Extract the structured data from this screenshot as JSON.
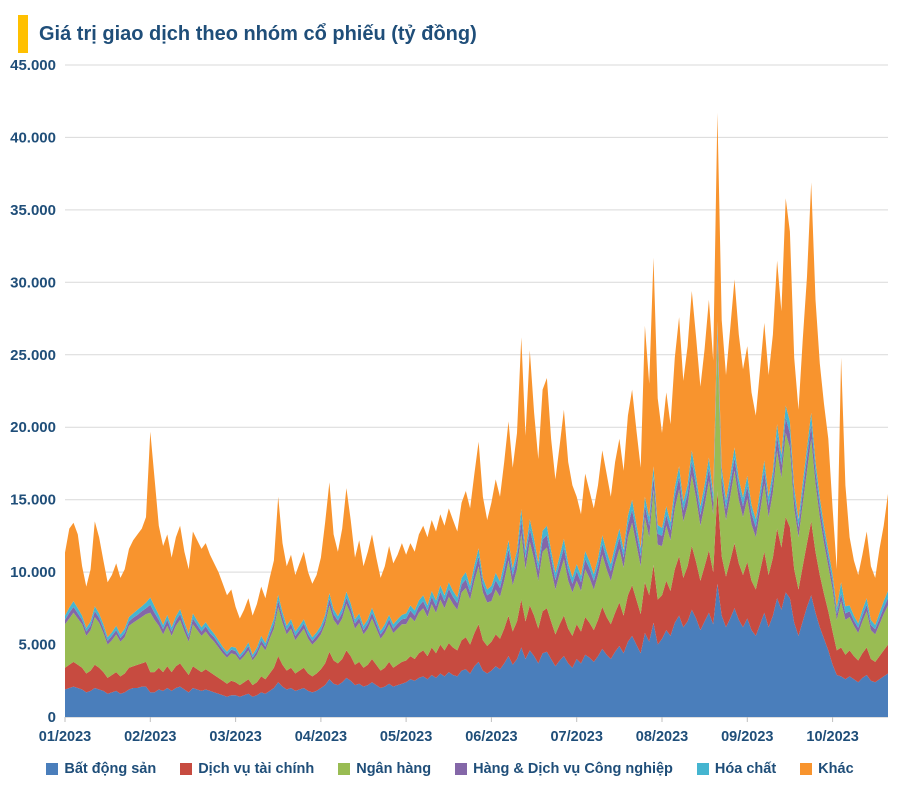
{
  "title": {
    "text": "Giá trị giao dịch theo nhóm cổ phiếu (tỷ đồng)",
    "accent_color": "#FFC000",
    "text_color": "#1F4E79"
  },
  "theme": {
    "navy": "#1F4E79",
    "grid_color": "#D9D9D9",
    "axis_color": "#BFBFBF",
    "background": "#FFFFFF"
  },
  "chart_data": {
    "type": "area",
    "stacked": true,
    "grid": true,
    "legend_position": "bottom",
    "ylim": [
      0,
      45000
    ],
    "y_tick_step": 5000,
    "y_tick_labels": [
      "0",
      "5.000",
      "10.000",
      "15.000",
      "20.000",
      "25.000",
      "30.000",
      "35.000",
      "40.000",
      "45.000"
    ],
    "x_labels": [
      "01/2023",
      "02/2023",
      "03/2023",
      "04/2023",
      "05/2023",
      "06/2023",
      "07/2023",
      "08/2023",
      "09/2023",
      "10/2023"
    ],
    "x_label_indices": [
      0,
      20,
      40,
      60,
      80,
      100,
      120,
      140,
      160,
      180
    ],
    "series": [
      {
        "name": "Bất động sản",
        "color": "#4A7EBB",
        "values": [
          1900,
          2000,
          2100,
          2000,
          1900,
          1700,
          1800,
          2000,
          1900,
          1800,
          1600,
          1700,
          1800,
          1600,
          1700,
          1900,
          2000,
          2000,
          2100,
          2100,
          1700,
          1700,
          1900,
          1800,
          2000,
          1800,
          2000,
          2100,
          1900,
          1700,
          2000,
          1900,
          1800,
          1900,
          1800,
          1700,
          1600,
          1500,
          1400,
          1500,
          1500,
          1400,
          1500,
          1600,
          1400,
          1500,
          1700,
          1600,
          1800,
          2000,
          2400,
          2100,
          1900,
          2000,
          1800,
          1900,
          2000,
          1800,
          1700,
          1800,
          2000,
          2200,
          2600,
          2300,
          2200,
          2400,
          2700,
          2500,
          2200,
          2300,
          2100,
          2200,
          2400,
          2200,
          2000,
          2100,
          2300,
          2100,
          2200,
          2300,
          2400,
          2600,
          2500,
          2700,
          2800,
          2600,
          2900,
          2700,
          3000,
          2800,
          3100,
          2900,
          2800,
          3200,
          3300,
          3000,
          3500,
          3800,
          3200,
          3000,
          3200,
          3500,
          3300,
          3700,
          4200,
          3600,
          4000,
          4800,
          4000,
          4600,
          4200,
          3700,
          4400,
          4500,
          4000,
          3500,
          3900,
          4200,
          3700,
          3400,
          4000,
          3700,
          4300,
          4100,
          3800,
          4200,
          4700,
          4300,
          4000,
          4500,
          4900,
          4400,
          5200,
          5600,
          5000,
          4400,
          5800,
          5200,
          6500,
          5000,
          5400,
          6000,
          5600,
          6500,
          7000,
          6200,
          6600,
          7400,
          6800,
          6000,
          6600,
          7200,
          6400,
          9200,
          7000,
          6200,
          6800,
          7500,
          6700,
          6200,
          6800,
          6000,
          5600,
          6400,
          7200,
          6200,
          7000,
          8200,
          7400,
          8600,
          8200,
          6500,
          5600,
          6600,
          7600,
          8400,
          7200,
          6200,
          5400,
          4600,
          3600,
          2900,
          2800,
          2600,
          2800,
          2600,
          2400,
          2700,
          2900,
          2500,
          2400,
          2600,
          2800,
          3000
        ]
      },
      {
        "name": "Dịch vụ tài chính",
        "color": "#C74B40",
        "values": [
          1500,
          1600,
          1700,
          1600,
          1500,
          1300,
          1400,
          1600,
          1500,
          1300,
          1100,
          1200,
          1300,
          1200,
          1300,
          1500,
          1500,
          1600,
          1600,
          1700,
          1400,
          1400,
          1500,
          1300,
          1500,
          1300,
          1500,
          1600,
          1400,
          1200,
          1500,
          1400,
          1300,
          1400,
          1300,
          1200,
          1100,
          1000,
          900,
          1000,
          900,
          800,
          900,
          1000,
          800,
          900,
          1100,
          1000,
          1200,
          1400,
          1800,
          1500,
          1300,
          1400,
          1200,
          1300,
          1400,
          1200,
          1100,
          1200,
          1300,
          1500,
          1900,
          1600,
          1500,
          1600,
          1900,
          1700,
          1400,
          1500,
          1300,
          1400,
          1600,
          1400,
          1200,
          1300,
          1500,
          1300,
          1400,
          1500,
          1500,
          1600,
          1500,
          1700,
          1800,
          1600,
          1900,
          1700,
          2000,
          1800,
          2000,
          1900,
          1800,
          2100,
          2200,
          2000,
          2300,
          2600,
          2100,
          1900,
          2000,
          2200,
          2100,
          2400,
          2800,
          2300,
          2600,
          3300,
          2600,
          3100,
          2800,
          2400,
          2900,
          3000,
          2600,
          2200,
          2500,
          2800,
          2400,
          2200,
          2400,
          2200,
          2600,
          2400,
          2200,
          2500,
          2900,
          2600,
          2400,
          2700,
          3000,
          2600,
          3200,
          3500,
          3100,
          2700,
          3500,
          3200,
          4000,
          3100,
          3000,
          3400,
          3100,
          3700,
          4100,
          3400,
          3800,
          4400,
          3900,
          3400,
          3800,
          4300,
          3600,
          6400,
          4100,
          3500,
          4000,
          4500,
          3900,
          3600,
          3900,
          3400,
          3200,
          3700,
          4200,
          3600,
          4000,
          4800,
          4300,
          5200,
          4900,
          3700,
          3200,
          3800,
          4400,
          5100,
          4200,
          3600,
          3100,
          2700,
          2300,
          1700,
          2000,
          1700,
          1800,
          1600,
          1500,
          1700,
          1900,
          1500,
          1400,
          1600,
          1800,
          2000
        ]
      },
      {
        "name": "Ngân hàng",
        "color": "#99BC53",
        "values": [
          3000,
          3200,
          3400,
          3200,
          3000,
          2600,
          2800,
          3300,
          3100,
          2700,
          2300,
          2400,
          2600,
          2400,
          2500,
          2900,
          3000,
          3100,
          3200,
          3300,
          4100,
          3600,
          2900,
          2600,
          2800,
          2500,
          2800,
          3000,
          2600,
          2300,
          2900,
          2700,
          2500,
          2600,
          2400,
          2300,
          2100,
          1900,
          1800,
          1900,
          1900,
          1700,
          1800,
          2000,
          1700,
          1900,
          2200,
          2000,
          2400,
          2700,
          3400,
          2900,
          2500,
          2700,
          2300,
          2500,
          2700,
          2400,
          2200,
          2300,
          2400,
          2700,
          3200,
          2800,
          2600,
          2800,
          3200,
          2900,
          2500,
          2700,
          2300,
          2500,
          2800,
          2500,
          2200,
          2400,
          2600,
          2400,
          2500,
          2600,
          2500,
          2700,
          2600,
          2800,
          2900,
          2700,
          3000,
          2800,
          3100,
          2900,
          3200,
          3000,
          2800,
          3300,
          3400,
          3100,
          3600,
          4000,
          3300,
          3000,
          2800,
          3100,
          2900,
          3300,
          3800,
          3200,
          3600,
          4600,
          3600,
          4400,
          3900,
          3300,
          4100,
          4200,
          3600,
          3100,
          3500,
          3900,
          3300,
          3000,
          3000,
          2800,
          3300,
          3100,
          2800,
          3100,
          3600,
          3300,
          3000,
          3400,
          3700,
          3300,
          4000,
          4300,
          3800,
          3300,
          4500,
          4000,
          5200,
          3800,
          3400,
          3800,
          3500,
          4200,
          4600,
          3900,
          4200,
          4900,
          4400,
          3800,
          4200,
          4800,
          4000,
          10400,
          4600,
          3900,
          4400,
          5000,
          4400,
          4000,
          4400,
          3900,
          3600,
          4100,
          4700,
          4000,
          4500,
          5400,
          4800,
          5800,
          5500,
          4200,
          3600,
          4300,
          5000,
          5700,
          4700,
          4000,
          3500,
          3100,
          2900,
          2100,
          3200,
          2400,
          2300,
          2100,
          1900,
          2200,
          2500,
          2000,
          1900,
          2200,
          2500,
          2700
        ]
      },
      {
        "name": "Hàng & Dịch vụ Công nghiệp",
        "color": "#8467A8",
        "values": [
          300,
          400,
          400,
          350,
          300,
          300,
          300,
          400,
          350,
          300,
          250,
          300,
          300,
          250,
          300,
          300,
          350,
          350,
          400,
          400,
          550,
          500,
          400,
          350,
          400,
          300,
          350,
          400,
          350,
          300,
          400,
          350,
          300,
          350,
          300,
          300,
          250,
          250,
          200,
          250,
          250,
          200,
          250,
          300,
          200,
          250,
          300,
          250,
          300,
          350,
          450,
          400,
          300,
          350,
          300,
          300,
          350,
          300,
          250,
          300,
          300,
          350,
          450,
          400,
          350,
          400,
          450,
          400,
          350,
          350,
          300,
          350,
          400,
          350,
          300,
          300,
          350,
          300,
          350,
          350,
          400,
          450,
          400,
          450,
          500,
          450,
          500,
          450,
          550,
          500,
          550,
          500,
          450,
          550,
          600,
          500,
          600,
          700,
          550,
          500,
          600,
          650,
          600,
          700,
          800,
          650,
          750,
          950,
          750,
          900,
          800,
          700,
          850,
          850,
          750,
          650,
          700,
          800,
          700,
          600,
          650,
          600,
          700,
          650,
          600,
          650,
          750,
          700,
          650,
          700,
          800,
          700,
          850,
          900,
          800,
          700,
          800,
          800,
          900,
          750,
          700,
          750,
          700,
          800,
          900,
          750,
          800,
          950,
          850,
          750,
          800,
          900,
          800,
          600,
          850,
          750,
          800,
          900,
          800,
          750,
          850,
          750,
          700,
          800,
          900,
          800,
          850,
          1000,
          900,
          1050,
          1000,
          800,
          700,
          800,
          900,
          1000,
          850,
          750,
          650,
          600,
          550,
          400,
          500,
          450,
          400,
          350,
          350,
          400,
          450,
          350,
          350,
          400,
          450,
          500
        ]
      },
      {
        "name": "Hóa chất",
        "color": "#45B5D0",
        "values": [
          300,
          350,
          400,
          350,
          300,
          250,
          300,
          350,
          300,
          300,
          250,
          250,
          300,
          250,
          300,
          300,
          300,
          350,
          350,
          400,
          500,
          450,
          350,
          300,
          350,
          300,
          300,
          350,
          300,
          250,
          350,
          300,
          300,
          300,
          300,
          250,
          250,
          200,
          200,
          200,
          250,
          200,
          200,
          250,
          200,
          250,
          300,
          250,
          300,
          350,
          400,
          350,
          300,
          300,
          300,
          300,
          300,
          300,
          250,
          250,
          300,
          300,
          400,
          350,
          300,
          350,
          400,
          350,
          300,
          300,
          300,
          300,
          350,
          300,
          250,
          300,
          300,
          300,
          300,
          300,
          350,
          350,
          350,
          400,
          400,
          350,
          400,
          400,
          450,
          400,
          450,
          400,
          400,
          450,
          500,
          450,
          500,
          550,
          450,
          400,
          450,
          500,
          450,
          550,
          600,
          500,
          550,
          700,
          550,
          650,
          600,
          500,
          600,
          650,
          550,
          500,
          550,
          600,
          500,
          450,
          500,
          450,
          550,
          500,
          450,
          500,
          600,
          550,
          500,
          550,
          600,
          550,
          650,
          700,
          600,
          550,
          600,
          600,
          700,
          600,
          550,
          600,
          550,
          650,
          700,
          600,
          650,
          750,
          700,
          600,
          650,
          700,
          600,
          700,
          700,
          600,
          650,
          700,
          650,
          600,
          700,
          600,
          550,
          650,
          700,
          600,
          650,
          800,
          700,
          850,
          800,
          650,
          550,
          650,
          700,
          800,
          700,
          600,
          550,
          500,
          500,
          400,
          800,
          500,
          400,
          350,
          300,
          400,
          450,
          350,
          300,
          400,
          450,
          500
        ]
      },
      {
        "name": "Khác",
        "color": "#F8942E",
        "values": [
          4350,
          5450,
          5400,
          5100,
          3400,
          2850,
          3600,
          5850,
          5250,
          4400,
          3800,
          3950,
          4300,
          3900,
          4100,
          4700,
          5050,
          5200,
          5350,
          5900,
          11450,
          8850,
          6150,
          5450,
          5550,
          4800,
          5450,
          5750,
          4850,
          4450,
          5650,
          5550,
          5400,
          5450,
          5100,
          4850,
          4700,
          4350,
          3900,
          3950,
          2800,
          2500,
          2750,
          3050,
          2700,
          3000,
          3400,
          3100,
          3600,
          4000,
          6750,
          4750,
          4100,
          4450,
          3900,
          4300,
          4650,
          4000,
          3700,
          3950,
          4700,
          6350,
          7650,
          5150,
          4450,
          5450,
          7150,
          5750,
          4250,
          5050,
          4100,
          4650,
          5050,
          4250,
          3650,
          4000,
          4750,
          4200,
          4450,
          4950,
          4050,
          4300,
          4050,
          4550,
          4800,
          4700,
          4900,
          4750,
          4900,
          4800,
          5100,
          4900,
          4550,
          5200,
          5600,
          5350,
          6300,
          7350,
          5600,
          4800,
          5750,
          6450,
          5850,
          6950,
          8200,
          6950,
          8100,
          11850,
          7900,
          11650,
          8700,
          7200,
          9750,
          10200,
          7700,
          6450,
          7600,
          8900,
          7000,
          6350,
          4650,
          4250,
          5350,
          4850,
          4550,
          5050,
          5850,
          5350,
          4650,
          5750,
          6200,
          5450,
          6900,
          7600,
          6500,
          5550,
          11800,
          9200,
          14400,
          8750,
          6550,
          7850,
          6750,
          8950,
          10300,
          8350,
          9550,
          11000,
          9550,
          8250,
          9350,
          10900,
          9200,
          14400,
          10150,
          8650,
          10150,
          11600,
          9950,
          8850,
          8950,
          7750,
          7150,
          8350,
          9500,
          8400,
          9400,
          11300,
          9900,
          14300,
          13100,
          8950,
          7550,
          9850,
          11800,
          15900,
          11150,
          9250,
          8400,
          7700,
          4550,
          2700,
          15500,
          8350,
          4700,
          3800,
          3350,
          3800,
          4600,
          3700,
          3250,
          4400,
          5200,
          6700
        ]
      }
    ]
  }
}
